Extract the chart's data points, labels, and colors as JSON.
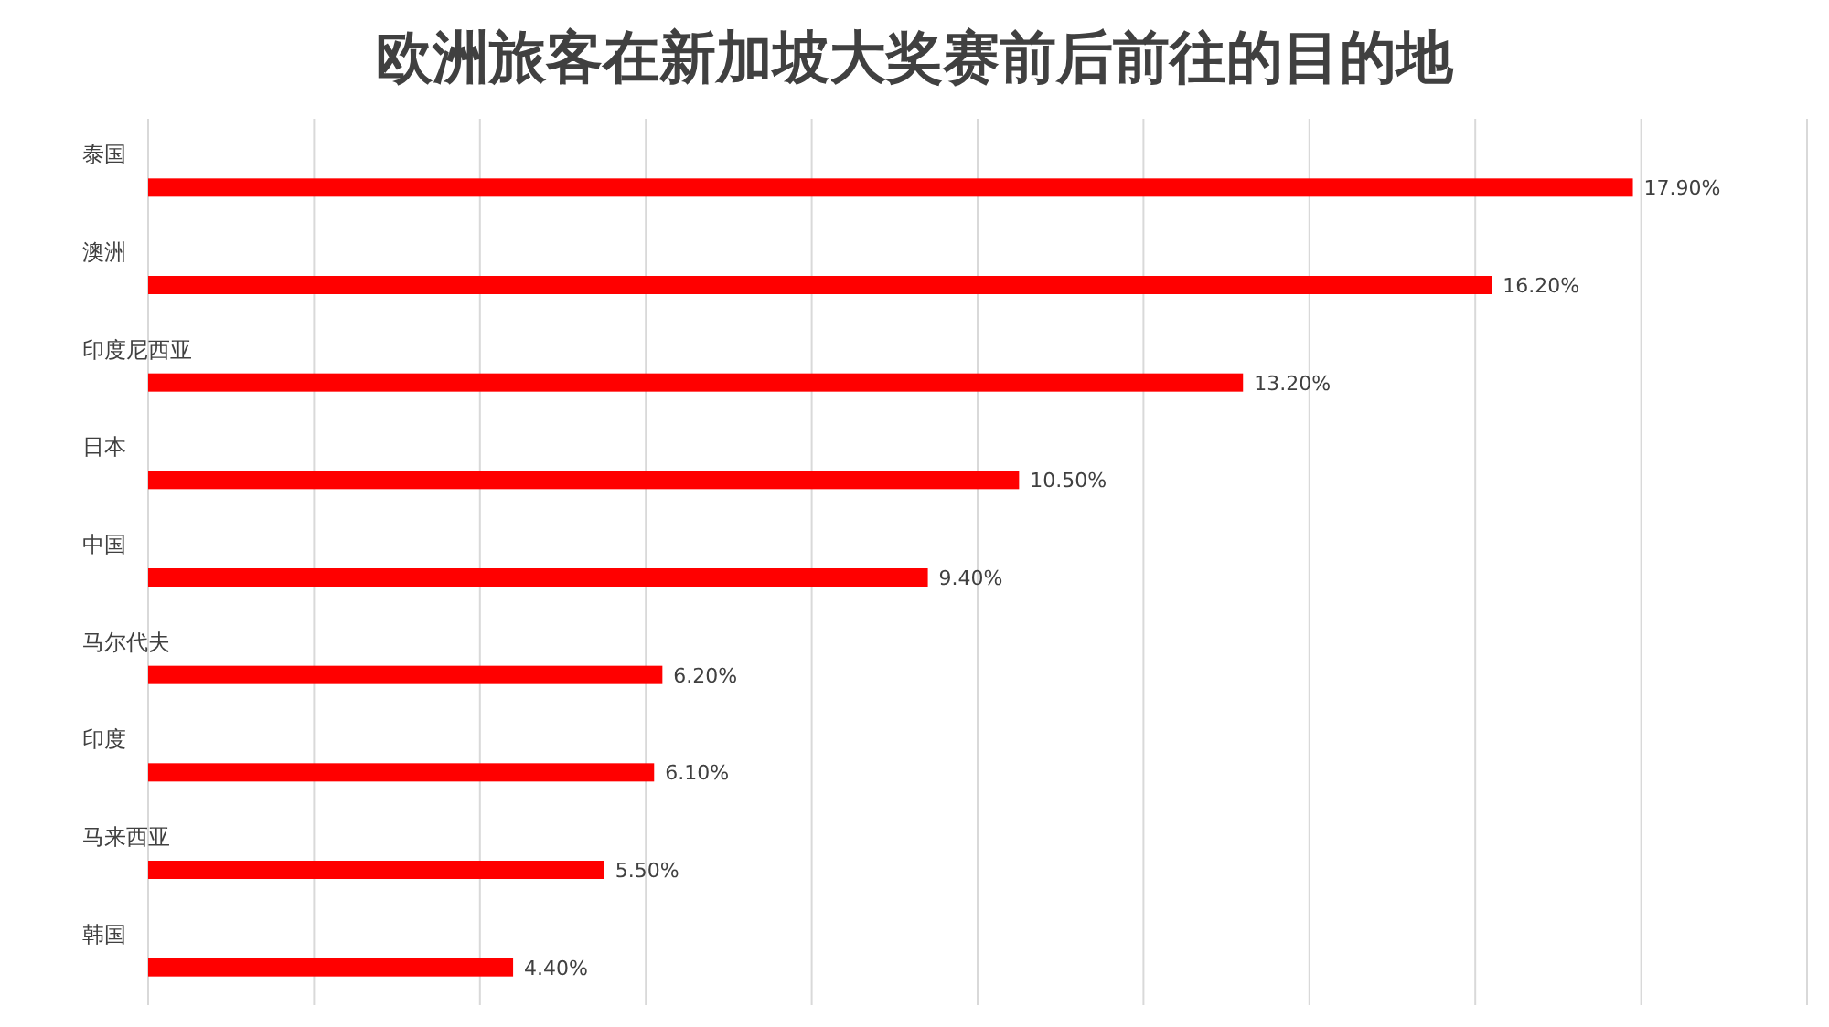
{
  "chart_data": {
    "type": "bar",
    "orientation": "horizontal",
    "title": "欧洲旅客在新加坡大奖赛前后前往的目的地",
    "categories": [
      "泰国",
      "澳洲",
      "印度尼西亚",
      "日本",
      "中国",
      "马尔代夫",
      "印度",
      "马来西亚",
      "韩国"
    ],
    "values": [
      17.9,
      16.2,
      13.2,
      10.5,
      9.4,
      6.2,
      6.1,
      5.5,
      4.4
    ],
    "value_labels": [
      "17.90%",
      "16.20%",
      "13.20%",
      "10.50%",
      "9.40%",
      "6.20%",
      "6.10%",
      "5.50%",
      "4.40%"
    ],
    "color": "#ff0000",
    "xlim": [
      0,
      20
    ],
    "xticks": [
      {
        "value": 0,
        "label": null
      },
      {
        "value": 2,
        "label": null
      },
      {
        "value": 4,
        "label": null
      },
      {
        "value": 6,
        "label": null
      },
      {
        "value": 8,
        "label": null
      },
      {
        "value": 10,
        "label": null
      },
      {
        "value": 12,
        "label": null
      },
      {
        "value": 14,
        "label": null
      },
      {
        "value": 16,
        "label": null
      },
      {
        "value": 18,
        "label": null
      },
      {
        "value": 20,
        "label": null
      }
    ],
    "grid": "x",
    "tick_labels": "y"
  }
}
